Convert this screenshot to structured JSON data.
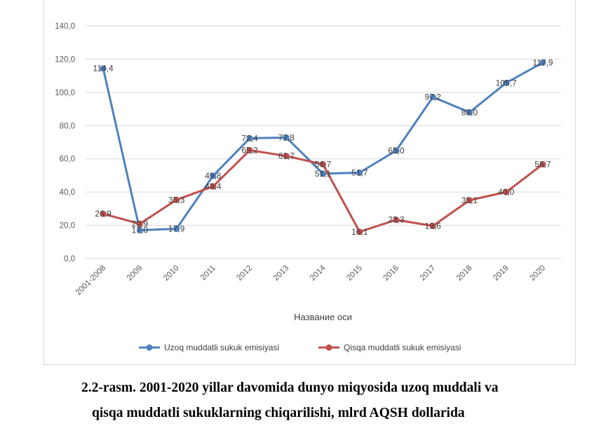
{
  "chart_data": {
    "type": "line",
    "categories": [
      "2001-2008",
      "2009",
      "2010",
      "2011",
      "2012",
      "2013",
      "2014",
      "2015",
      "2016",
      "2017",
      "2018",
      "2019",
      "2020"
    ],
    "series": [
      {
        "name": "Uzoq muddatli sukuk emisiyasi",
        "color": "#4f81bd",
        "values": [
          114.4,
          17.0,
          17.9,
          49.8,
          72.4,
          72.8,
          51.1,
          51.7,
          65.0,
          97.2,
          88.0,
          105.7,
          117.9
        ],
        "labels": [
          "114,4",
          "17,0",
          "17,9",
          "49,8",
          "72,4",
          "72,8",
          "51,1",
          "51,7",
          "65,0",
          "97,2",
          "88,0",
          "105,7",
          "117,9"
        ]
      },
      {
        "name": "Qisqa muddatli sukuk emisiyasi",
        "color": "#c0504d",
        "values": [
          26.9,
          20.9,
          35.3,
          43.4,
          65.2,
          61.7,
          56.7,
          16.1,
          23.3,
          19.6,
          35.1,
          40.0,
          56.7
        ],
        "labels": [
          "26,9",
          "20,9",
          "35,3",
          "43,4",
          "65,2",
          "61,7",
          "56,7",
          "16,1",
          "23,3",
          "19,6",
          "35,1",
          "40,0",
          "56,7"
        ]
      }
    ],
    "ylim": [
      0,
      140
    ],
    "yticks": [
      "0,0",
      "20,0",
      "40,0",
      "60,0",
      "80,0",
      "100,0",
      "120,0",
      "140,0"
    ],
    "xlabel": "Название оси",
    "ylabel": "",
    "grid": true,
    "legend": "bottom"
  },
  "caption": {
    "line1": "2.2-rasm. 2001-2020 yillar davomida dunyo miqyosida uzoq muddali va",
    "line2": "qisqa muddatli sukuklarning chiqarilishi, mlrd AQSH dollarida"
  }
}
